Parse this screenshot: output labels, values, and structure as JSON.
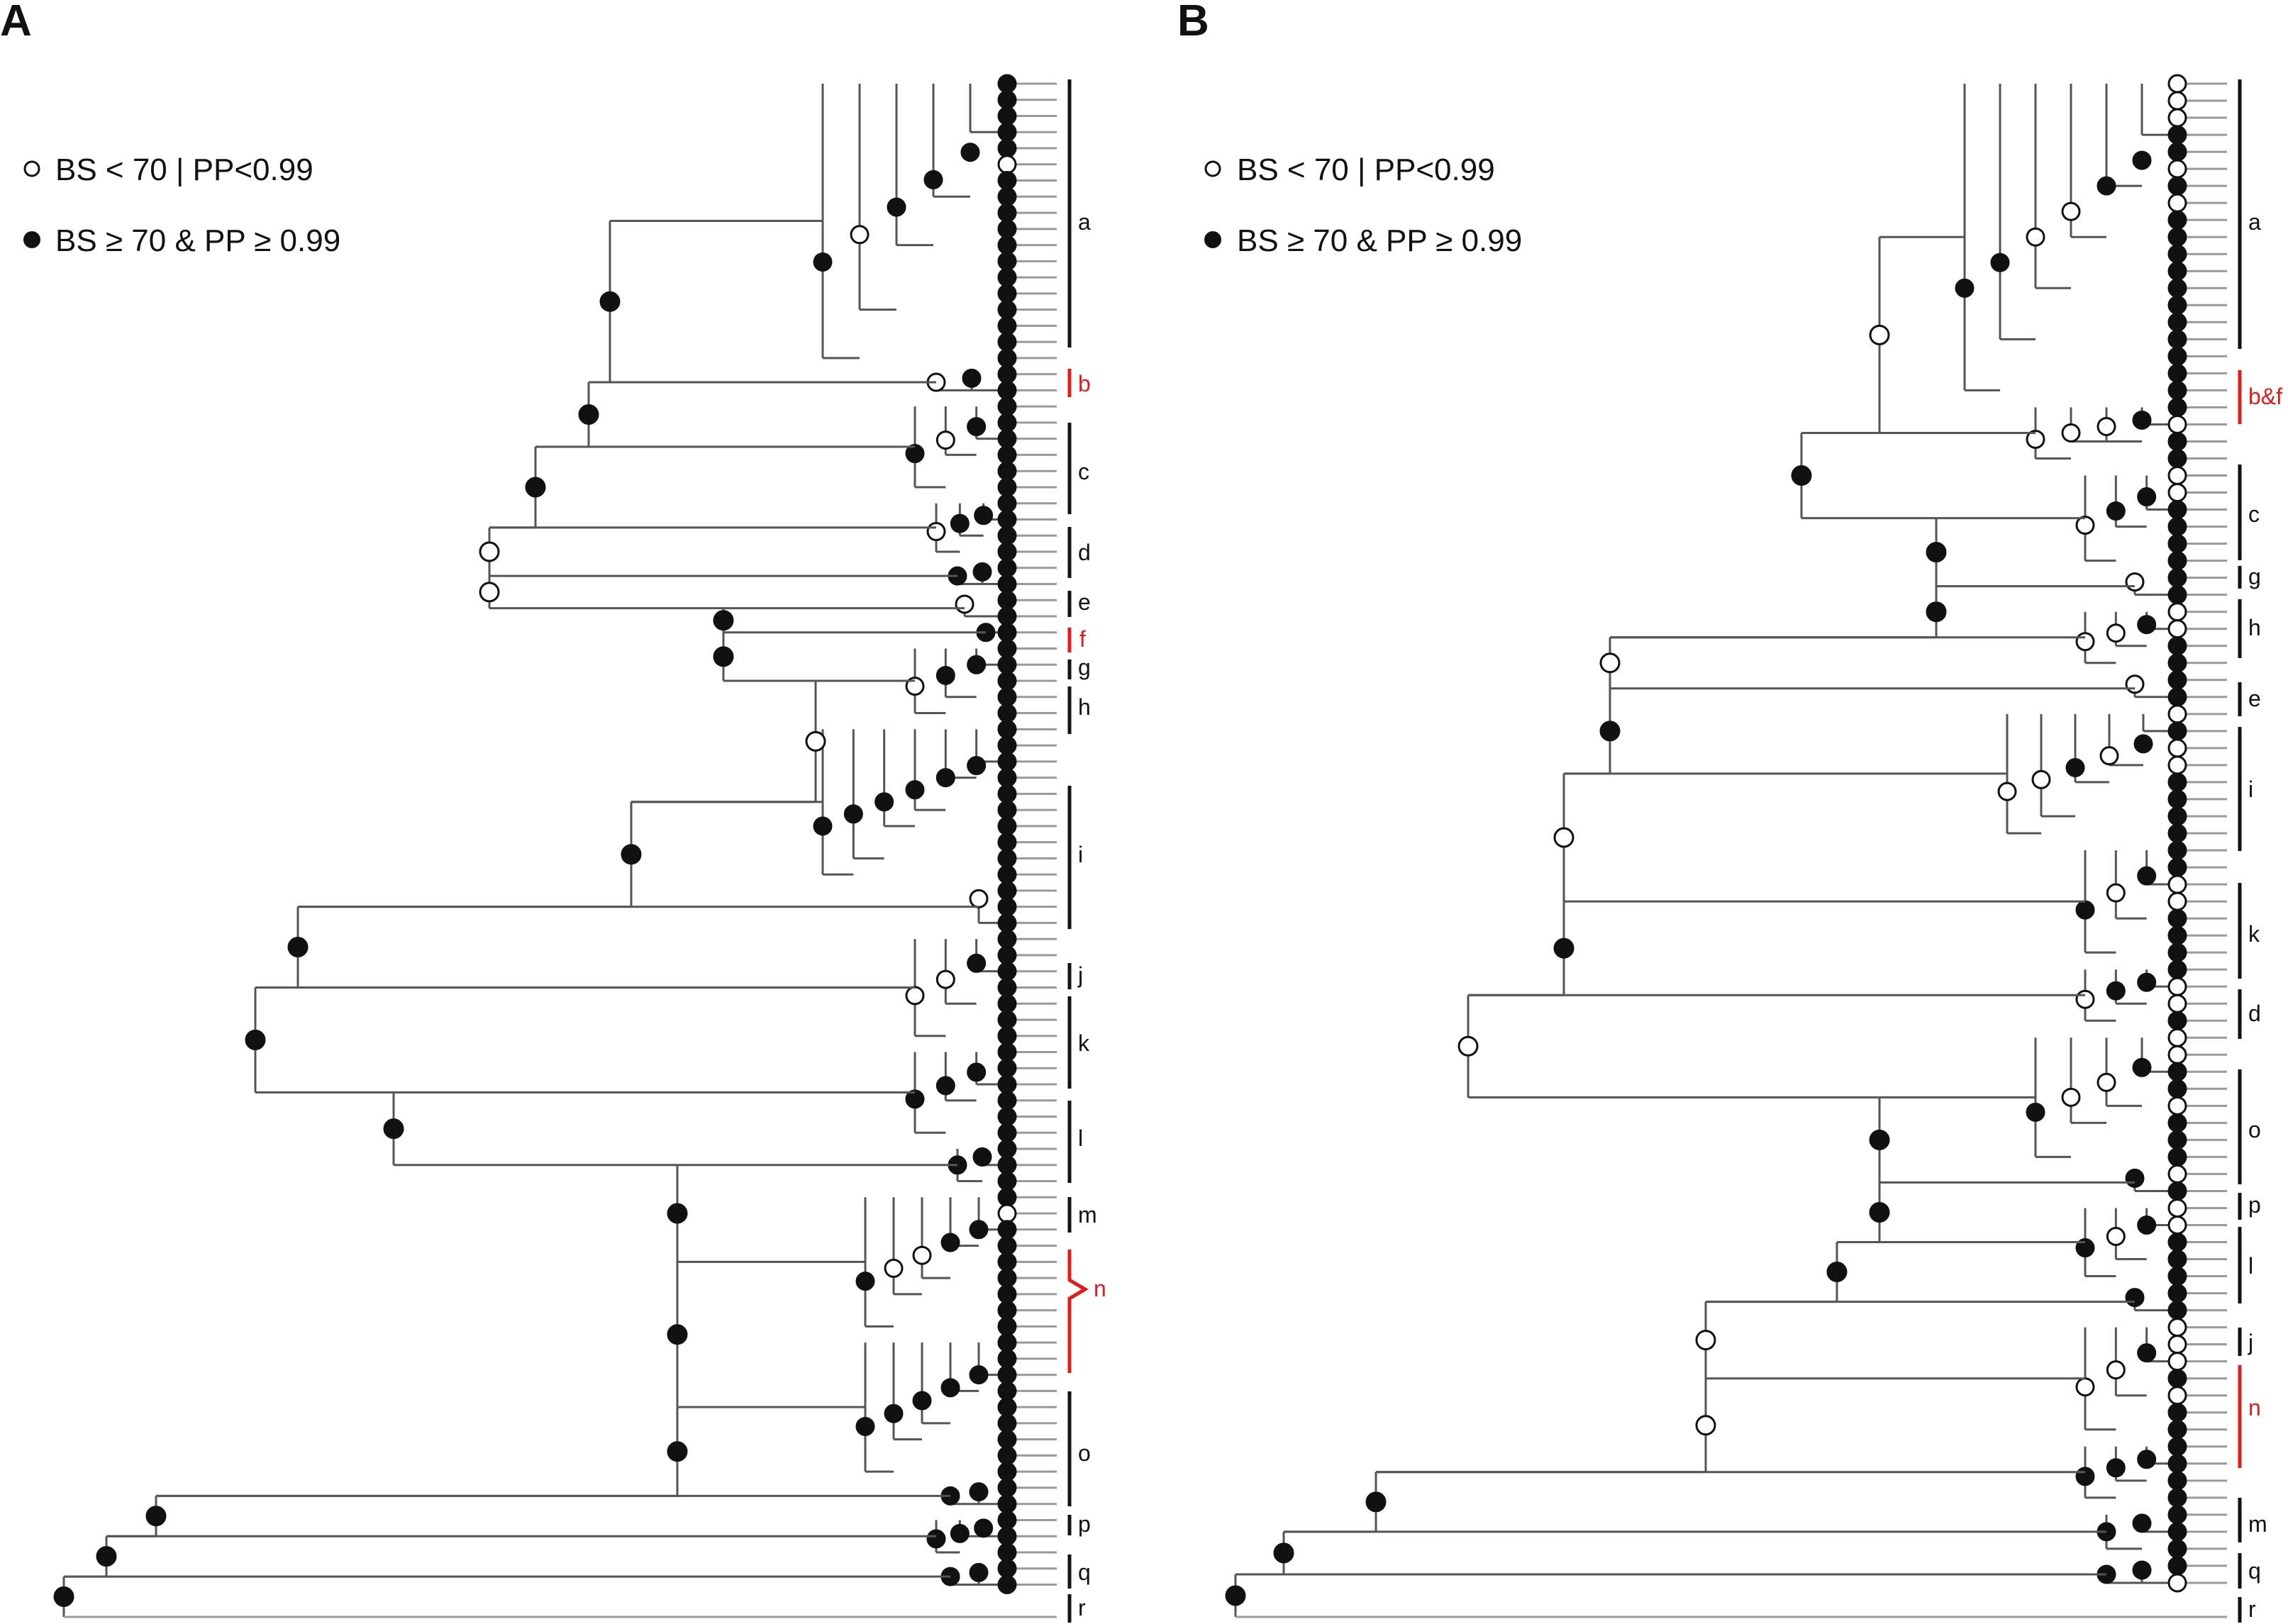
{
  "figure": {
    "panels": [
      {
        "label": "A",
        "legend": {
          "open": "BS < 70 | PP<0.99",
          "filled": "BS ≥ 70 & PP ≥ 0.99"
        },
        "clades": [
          {
            "label": "a",
            "highlight": false
          },
          {
            "label": "b",
            "highlight": true
          },
          {
            "label": "c",
            "highlight": false
          },
          {
            "label": "d",
            "highlight": false
          },
          {
            "label": "e",
            "highlight": false
          },
          {
            "label": "f",
            "highlight": true
          },
          {
            "label": "g",
            "highlight": false
          },
          {
            "label": "h",
            "highlight": false
          },
          {
            "label": "i",
            "highlight": false
          },
          {
            "label": "j",
            "highlight": false
          },
          {
            "label": "k",
            "highlight": false
          },
          {
            "label": "l",
            "highlight": false
          },
          {
            "label": "m",
            "highlight": false
          },
          {
            "label": "n",
            "highlight": true
          },
          {
            "label": "o",
            "highlight": false
          },
          {
            "label": "p",
            "highlight": false
          },
          {
            "label": "q",
            "highlight": false
          },
          {
            "label": "r",
            "highlight": false
          }
        ]
      },
      {
        "label": "B",
        "legend": {
          "open": "BS < 70 | PP<0.99",
          "filled": "BS ≥ 70 & PP ≥ 0.99"
        },
        "clades": [
          {
            "label": "a",
            "highlight": false
          },
          {
            "label": "b&f",
            "highlight": true
          },
          {
            "label": "c",
            "highlight": false
          },
          {
            "label": "g",
            "highlight": false
          },
          {
            "label": "h",
            "highlight": false
          },
          {
            "label": "e",
            "highlight": false
          },
          {
            "label": "i",
            "highlight": false
          },
          {
            "label": "k",
            "highlight": false
          },
          {
            "label": "d",
            "highlight": false
          },
          {
            "label": "o",
            "highlight": false
          },
          {
            "label": "p",
            "highlight": false
          },
          {
            "label": "l",
            "highlight": false
          },
          {
            "label": "j",
            "highlight": false
          },
          {
            "label": "n",
            "highlight": true
          },
          {
            "label": "m",
            "highlight": false
          },
          {
            "label": "q",
            "highlight": false
          },
          {
            "label": "r",
            "highlight": false
          }
        ]
      }
    ],
    "colors": {
      "line": "#555555",
      "tip": "#9a9a9a",
      "node_fill": "#111111",
      "highlight": "#e8191a",
      "text": "#111111"
    }
  }
}
